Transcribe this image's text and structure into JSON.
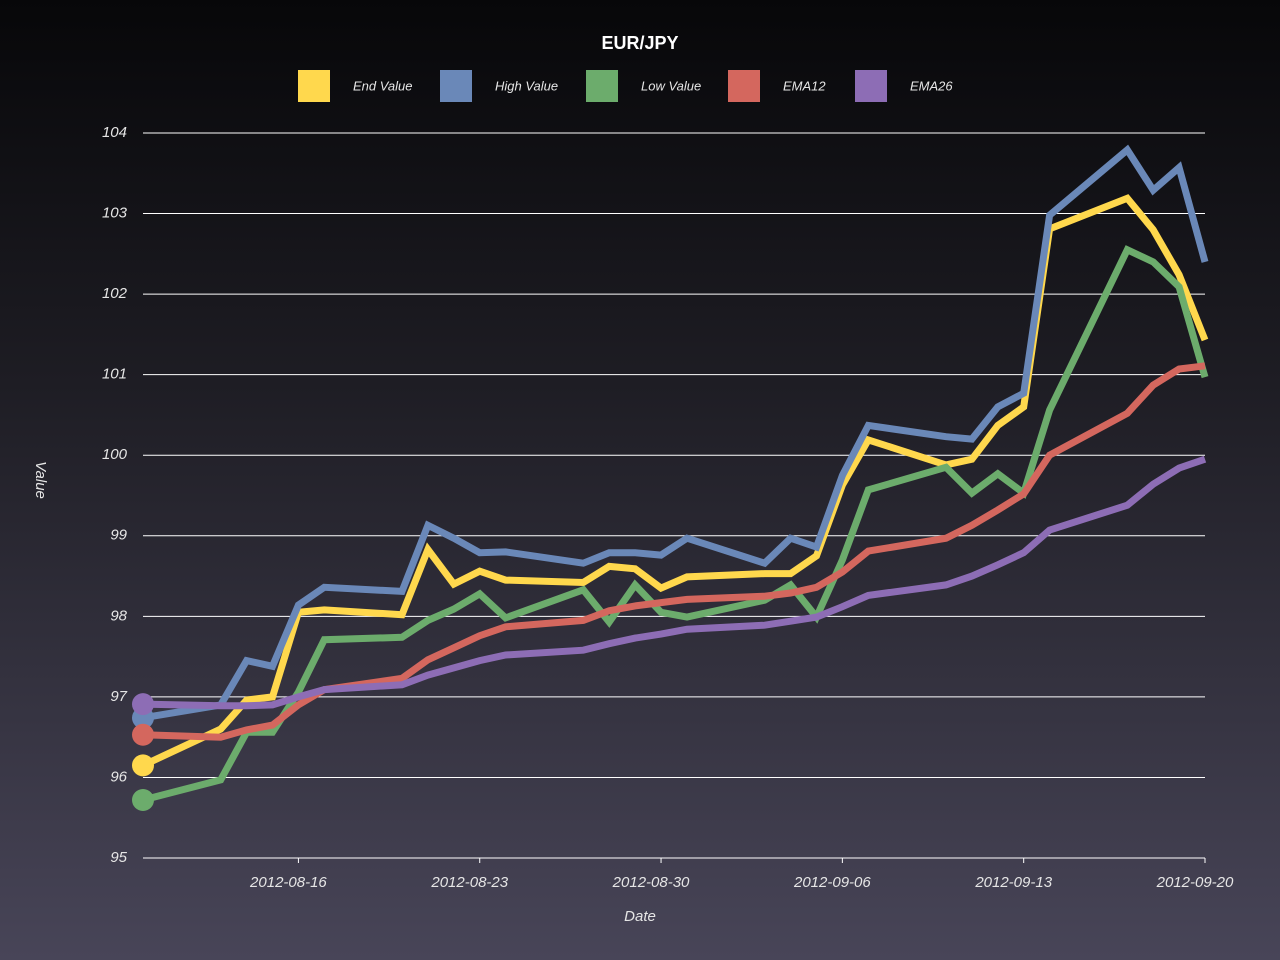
{
  "chart_data": {
    "type": "line",
    "title": "EUR/JPY",
    "x_label": "Date",
    "y_label": "Value",
    "x": [
      "2012-08-10",
      "2012-08-13",
      "2012-08-14",
      "2012-08-15",
      "2012-08-16",
      "2012-08-17",
      "2012-08-20",
      "2012-08-21",
      "2012-08-22",
      "2012-08-23",
      "2012-08-24",
      "2012-08-27",
      "2012-08-28",
      "2012-08-29",
      "2012-08-30",
      "2012-08-31",
      "2012-09-03",
      "2012-09-04",
      "2012-09-05",
      "2012-09-06",
      "2012-09-07",
      "2012-09-10",
      "2012-09-11",
      "2012-09-12",
      "2012-09-13",
      "2012-09-14",
      "2012-09-17",
      "2012-09-18",
      "2012-09-19",
      "2012-09-20"
    ],
    "series": [
      {
        "name": "End Value",
        "color": "#ffd84d",
        "values": [
          96.15,
          96.6,
          96.96,
          97.0,
          98.05,
          98.08,
          98.02,
          98.83,
          98.4,
          98.56,
          98.45,
          98.42,
          98.62,
          98.59,
          98.35,
          98.49,
          98.53,
          98.53,
          98.75,
          99.63,
          100.19,
          99.88,
          99.95,
          100.37,
          100.6,
          102.81,
          103.19,
          102.8,
          102.24,
          101.43
        ]
      },
      {
        "name": "High Value",
        "color": "#6a88b8",
        "values": [
          96.74,
          96.9,
          97.45,
          97.38,
          98.14,
          98.36,
          98.31,
          99.13,
          98.97,
          98.79,
          98.8,
          98.66,
          98.79,
          98.79,
          98.76,
          98.97,
          98.66,
          98.97,
          98.86,
          99.75,
          100.37,
          100.23,
          100.2,
          100.6,
          100.77,
          102.98,
          103.79,
          103.29,
          103.57,
          102.4
        ]
      },
      {
        "name": "Low Value",
        "color": "#6cac6c",
        "values": [
          95.72,
          95.97,
          96.56,
          96.56,
          97.06,
          97.71,
          97.74,
          97.95,
          98.09,
          98.28,
          97.98,
          98.33,
          97.93,
          98.39,
          98.05,
          97.99,
          98.2,
          98.39,
          97.99,
          98.7,
          99.57,
          99.85,
          99.53,
          99.77,
          99.53,
          100.56,
          102.55,
          102.4,
          102.09,
          100.97
        ]
      },
      {
        "name": "EMA12",
        "color": "#d4675e",
        "values": [
          96.53,
          96.5,
          96.59,
          96.65,
          96.9,
          97.09,
          97.23,
          97.46,
          97.61,
          97.76,
          97.87,
          97.95,
          98.07,
          98.13,
          98.17,
          98.21,
          98.25,
          98.29,
          98.36,
          98.55,
          98.81,
          98.97,
          99.13,
          99.32,
          99.52,
          100.0,
          100.52,
          100.87,
          101.07,
          101.11
        ]
      },
      {
        "name": "EMA26",
        "color": "#8d6db5",
        "values": [
          96.91,
          96.89,
          96.89,
          96.9,
          97.0,
          97.09,
          97.15,
          97.27,
          97.36,
          97.45,
          97.52,
          97.58,
          97.66,
          97.73,
          97.78,
          97.84,
          97.89,
          97.94,
          97.99,
          98.12,
          98.26,
          98.39,
          98.5,
          98.64,
          98.79,
          99.07,
          99.38,
          99.64,
          99.84,
          99.95
        ]
      }
    ],
    "xlim": [
      "2012-08-10",
      "2012-09-20"
    ],
    "xticks": [
      "2012-08-16",
      "2012-08-23",
      "2012-08-30",
      "2012-09-06",
      "2012-09-13",
      "2012-09-20"
    ],
    "ylim": [
      95,
      104
    ],
    "yticks": [
      95,
      96,
      97,
      98,
      99,
      100,
      101,
      102,
      103,
      104
    ],
    "grid": true
  }
}
